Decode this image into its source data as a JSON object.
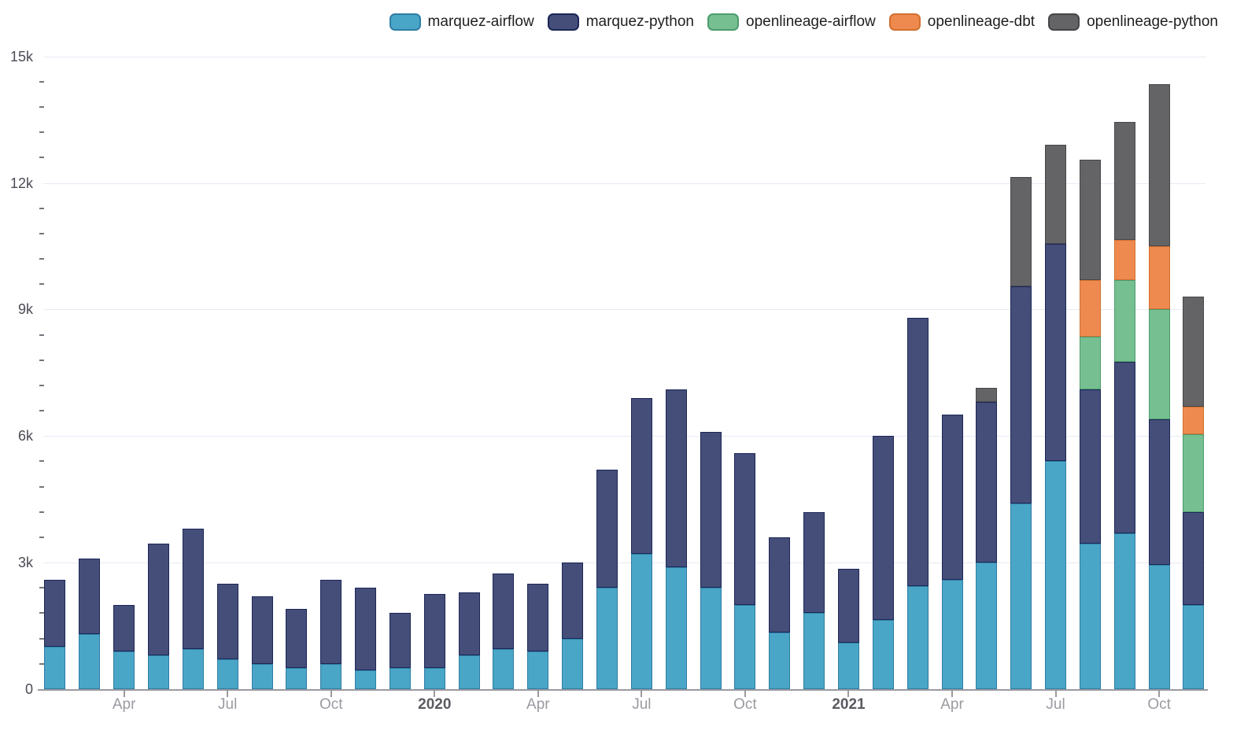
{
  "chart_data": {
    "type": "bar",
    "stacked": true,
    "title": "",
    "xlabel": "",
    "ylabel": "",
    "ylim": [
      0,
      15000
    ],
    "grid": "horizontal-only",
    "legend_position": "top-right",
    "categories": [
      "Feb 2019",
      "Mar 2019",
      "Apr 2019",
      "May 2019",
      "Jun 2019",
      "Jul 2019",
      "Aug 2019",
      "Sep 2019",
      "Oct 2019",
      "Nov 2019",
      "Dec 2019",
      "Jan 2020",
      "Feb 2020",
      "Mar 2020",
      "Apr 2020",
      "May 2020",
      "Jun 2020",
      "Jul 2020",
      "Aug 2020",
      "Sep 2020",
      "Oct 2020",
      "Nov 2020",
      "Dec 2020",
      "Jan 2021",
      "Feb 2021",
      "Mar 2021",
      "Apr 2021",
      "May 2021",
      "Jun 2021",
      "Jul 2021",
      "Aug 2021",
      "Sep 2021",
      "Oct 2021",
      "Nov 2021"
    ],
    "series": [
      {
        "name": "marquez-airflow",
        "color": "#4aa6c7",
        "border_color": "#2e7da3",
        "values": [
          1000,
          1300,
          900,
          800,
          950,
          700,
          600,
          500,
          600,
          450,
          500,
          500,
          800,
          950,
          900,
          1200,
          2400,
          3200,
          2900,
          2400,
          2000,
          1350,
          1800,
          1100,
          1650,
          2450,
          2600,
          3000,
          4400,
          5400,
          3450,
          3700,
          2950,
          2000
        ]
      },
      {
        "name": "marquez-python",
        "color": "#454e79",
        "border_color": "#1c2758",
        "values": [
          1600,
          1800,
          1100,
          2650,
          2850,
          1800,
          1600,
          1400,
          2000,
          1950,
          1300,
          1750,
          1500,
          1800,
          1600,
          1800,
          2800,
          3700,
          4200,
          3700,
          3600,
          2250,
          2400,
          1750,
          4350,
          6350,
          3900,
          3800,
          5150,
          5150,
          3650,
          4050,
          3450,
          2200
        ]
      },
      {
        "name": "openlineage-airflow",
        "color": "#76bf90",
        "border_color": "#4d9c6e",
        "values": [
          0,
          0,
          0,
          0,
          0,
          0,
          0,
          0,
          0,
          0,
          0,
          0,
          0,
          0,
          0,
          0,
          0,
          0,
          0,
          0,
          0,
          0,
          0,
          0,
          0,
          0,
          0,
          0,
          0,
          0,
          1250,
          1950,
          2600,
          1850
        ]
      },
      {
        "name": "openlineage-dbt",
        "color": "#ee8a50",
        "border_color": "#d1702f",
        "values": [
          0,
          0,
          0,
          0,
          0,
          0,
          0,
          0,
          0,
          0,
          0,
          0,
          0,
          0,
          0,
          0,
          0,
          0,
          0,
          0,
          0,
          0,
          0,
          0,
          0,
          0,
          0,
          0,
          0,
          0,
          1350,
          950,
          1500,
          650
        ]
      },
      {
        "name": "openlineage-python",
        "color": "#646467",
        "border_color": "#47474a",
        "values": [
          0,
          0,
          0,
          0,
          0,
          0,
          0,
          0,
          0,
          0,
          0,
          0,
          0,
          0,
          0,
          0,
          0,
          0,
          0,
          0,
          0,
          0,
          0,
          0,
          0,
          0,
          0,
          350,
          2600,
          2350,
          2850,
          2800,
          3850,
          2600
        ]
      }
    ],
    "y_ticks": [
      {
        "value": 0,
        "label": "0"
      },
      {
        "value": 3000,
        "label": "3k"
      },
      {
        "value": 6000,
        "label": "6k"
      },
      {
        "value": 9000,
        "label": "9k"
      },
      {
        "value": 12000,
        "label": "12k"
      },
      {
        "value": 15000,
        "label": "15k"
      }
    ],
    "y_minor_tick_step": 600,
    "x_ticks": [
      {
        "index": 2,
        "label": "Apr",
        "year": false
      },
      {
        "index": 5,
        "label": "Jul",
        "year": false
      },
      {
        "index": 8,
        "label": "Oct",
        "year": false
      },
      {
        "index": 11,
        "label": "2020",
        "year": true
      },
      {
        "index": 14,
        "label": "Apr",
        "year": false
      },
      {
        "index": 17,
        "label": "Jul",
        "year": false
      },
      {
        "index": 20,
        "label": "Oct",
        "year": false
      },
      {
        "index": 23,
        "label": "2021",
        "year": true
      },
      {
        "index": 26,
        "label": "Apr",
        "year": false
      },
      {
        "index": 29,
        "label": "Jul",
        "year": false
      },
      {
        "index": 32,
        "label": "Oct",
        "year": false
      }
    ]
  }
}
